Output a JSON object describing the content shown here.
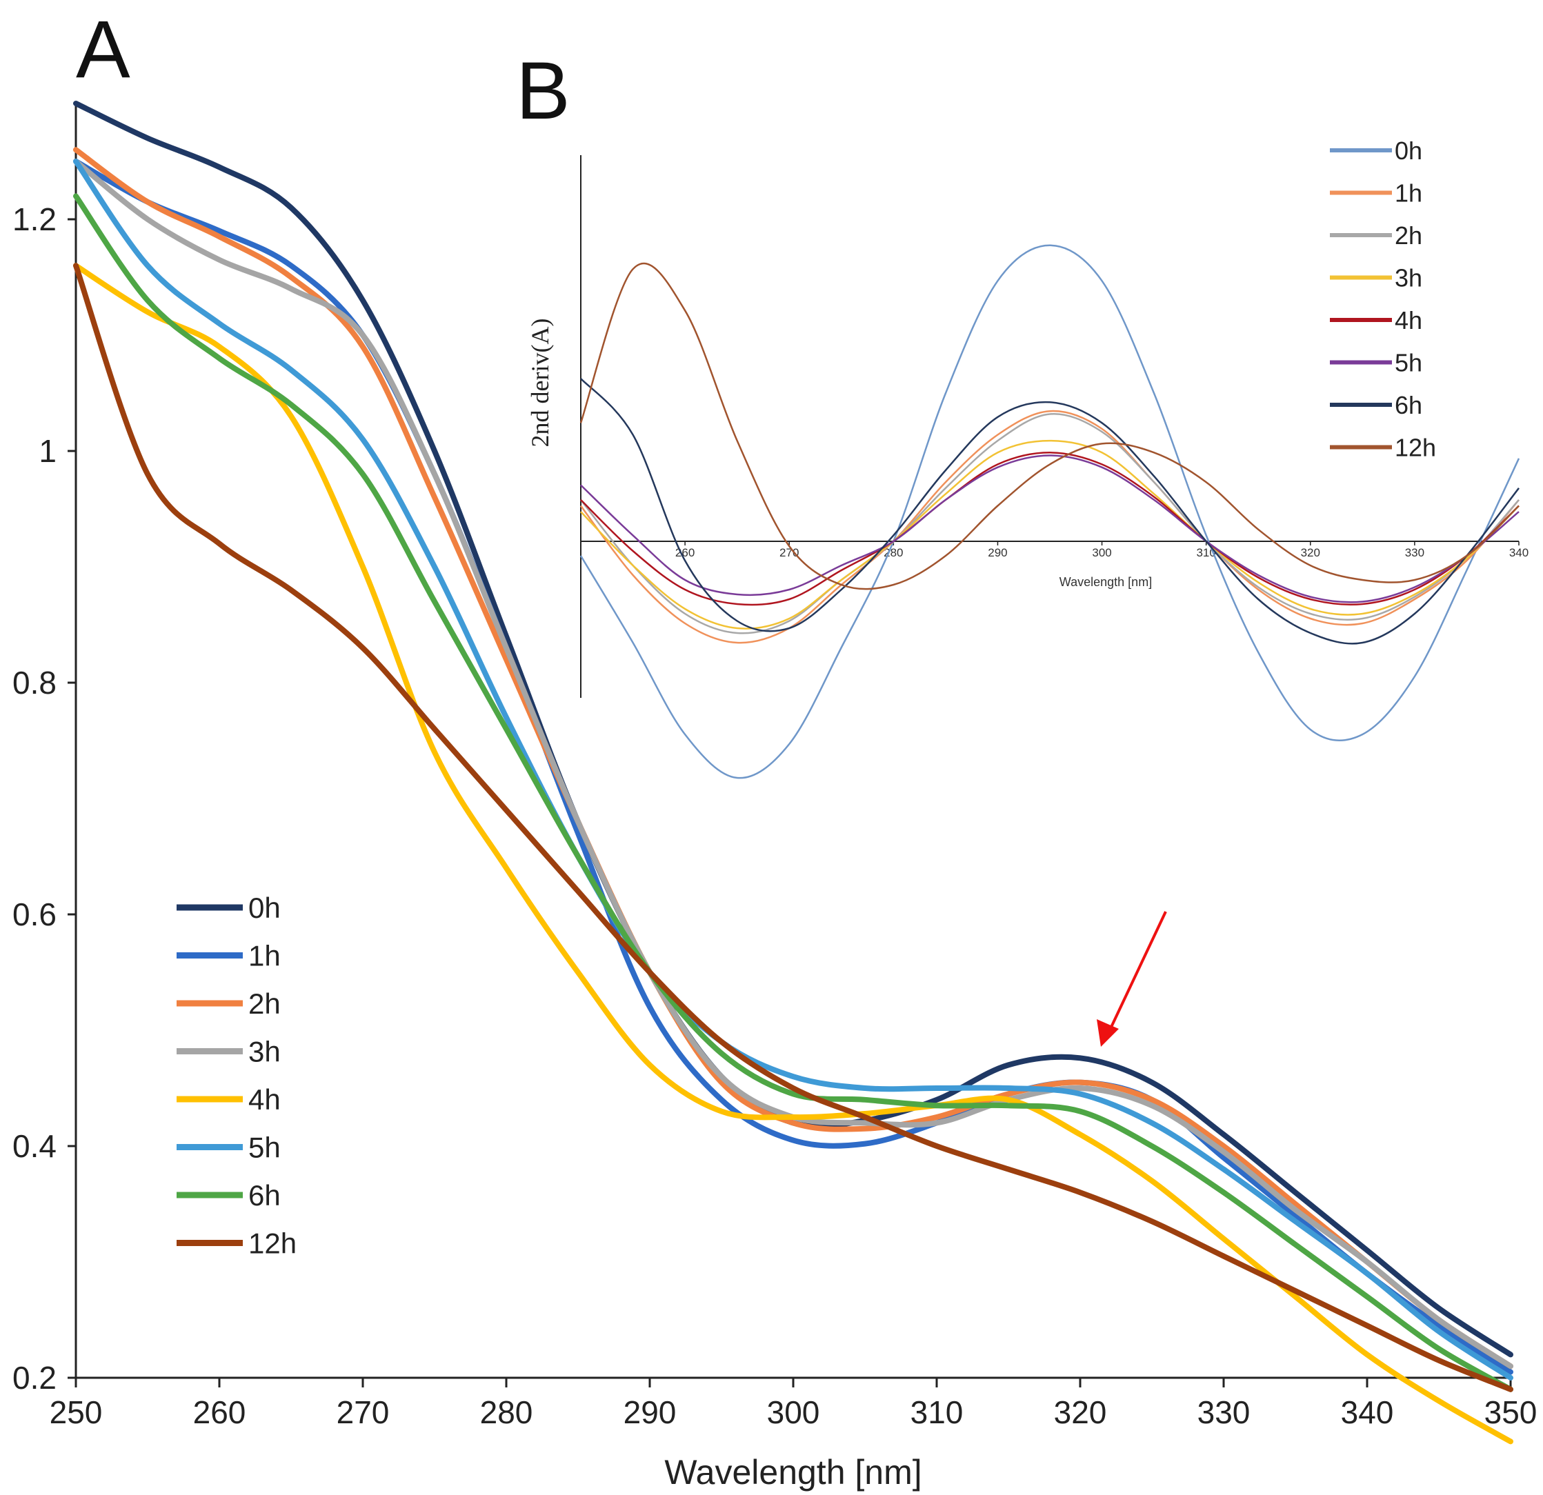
{
  "panels": {
    "a_label": "A",
    "b_label": "B"
  },
  "chart_data": [
    {
      "id": "A",
      "type": "line",
      "title": "",
      "xlabel": "Wavelength [nm]",
      "ylabel": "",
      "xlim": [
        250,
        350
      ],
      "ylim": [
        0.2,
        1.3
      ],
      "xticks": [
        "250",
        "260",
        "270",
        "280",
        "290",
        "300",
        "310",
        "320",
        "330",
        "340",
        "350"
      ],
      "yticks": [
        "0.2",
        "0.4",
        "0.6",
        "0.8",
        "1",
        "1.2"
      ],
      "x": [
        250,
        255,
        260,
        265,
        270,
        275,
        280,
        285,
        290,
        295,
        300,
        305,
        310,
        315,
        320,
        325,
        330,
        335,
        340,
        345,
        350
      ],
      "series": [
        {
          "name": "0h",
          "color": "#1f3864",
          "values": [
            1.3,
            1.27,
            1.245,
            1.21,
            1.13,
            1.0,
            0.84,
            0.68,
            0.55,
            0.46,
            0.42,
            0.422,
            0.44,
            0.47,
            0.476,
            0.455,
            0.41,
            0.36,
            0.31,
            0.26,
            0.22
          ]
        },
        {
          "name": "1h",
          "color": "#2e6bc7",
          "values": [
            1.25,
            1.215,
            1.19,
            1.16,
            1.1,
            0.98,
            0.83,
            0.67,
            0.52,
            0.44,
            0.405,
            0.402,
            0.42,
            0.445,
            0.455,
            0.44,
            0.39,
            0.34,
            0.29,
            0.245,
            0.205
          ]
        },
        {
          "name": "2h",
          "color": "#f08040",
          "values": [
            1.26,
            1.215,
            1.185,
            1.15,
            1.09,
            0.96,
            0.82,
            0.68,
            0.55,
            0.455,
            0.42,
            0.415,
            0.425,
            0.445,
            0.455,
            0.44,
            0.4,
            0.35,
            0.3,
            0.25,
            0.21
          ]
        },
        {
          "name": "3h",
          "color": "#a5a5a5",
          "values": [
            1.25,
            1.2,
            1.165,
            1.14,
            1.1,
            0.98,
            0.83,
            0.68,
            0.55,
            0.46,
            0.425,
            0.42,
            0.42,
            0.44,
            0.45,
            0.435,
            0.395,
            0.345,
            0.3,
            0.25,
            0.21
          ]
        },
        {
          "name": "4h",
          "color": "#ffc000",
          "values": [
            1.16,
            1.12,
            1.09,
            1.03,
            0.9,
            0.74,
            0.64,
            0.55,
            0.47,
            0.43,
            0.425,
            0.428,
            0.435,
            0.44,
            0.41,
            0.37,
            0.32,
            0.27,
            0.22,
            0.18,
            0.145
          ]
        },
        {
          "name": "5h",
          "color": "#3f9ad6",
          "values": [
            1.25,
            1.16,
            1.11,
            1.07,
            1.01,
            0.9,
            0.77,
            0.65,
            0.55,
            0.49,
            0.46,
            0.45,
            0.45,
            0.45,
            0.445,
            0.42,
            0.38,
            0.335,
            0.29,
            0.24,
            0.2
          ]
        },
        {
          "name": "6h",
          "color": "#4ea645",
          "values": [
            1.22,
            1.13,
            1.08,
            1.04,
            0.98,
            0.87,
            0.76,
            0.65,
            0.55,
            0.48,
            0.445,
            0.44,
            0.435,
            0.435,
            0.43,
            0.4,
            0.36,
            0.315,
            0.27,
            0.225,
            0.19
          ]
        },
        {
          "name": "12h",
          "color": "#9c3f0e",
          "values": [
            1.16,
            0.98,
            0.92,
            0.88,
            0.83,
            0.76,
            0.69,
            0.62,
            0.55,
            0.49,
            0.45,
            0.425,
            0.4,
            0.38,
            0.36,
            0.335,
            0.305,
            0.275,
            0.245,
            0.215,
            0.19
          ]
        }
      ]
    },
    {
      "id": "B",
      "type": "line",
      "title": "",
      "xlabel": "Wavelength [nm]",
      "ylabel": "2nd deriv(A)",
      "xlim": [
        250,
        340
      ],
      "ylim": [
        -1.0,
        1.2
      ],
      "xticks": [
        "260",
        "270",
        "280",
        "290",
        "300",
        "310",
        "320",
        "330",
        "340"
      ],
      "yticks": [],
      "x": [
        250,
        255,
        260,
        265,
        270,
        275,
        280,
        285,
        290,
        295,
        300,
        305,
        310,
        315,
        320,
        325,
        330,
        335,
        340
      ],
      "series": [
        {
          "name": "0h",
          "color": "#6f97c9",
          "values": [
            -0.06,
            -0.42,
            -0.8,
            -0.98,
            -0.84,
            -0.44,
            0.0,
            0.5,
            0.88,
            1.0,
            0.88,
            0.5,
            0.02,
            -0.46,
            -0.78,
            -0.8,
            -0.56,
            -0.12,
            0.28
          ]
        },
        {
          "name": "1h",
          "color": "#f0915a",
          "values": [
            0.12,
            -0.14,
            -0.34,
            -0.42,
            -0.36,
            -0.18,
            0.0,
            0.2,
            0.36,
            0.44,
            0.38,
            0.2,
            0.0,
            -0.2,
            -0.32,
            -0.34,
            -0.24,
            -0.08,
            0.14
          ]
        },
        {
          "name": "2h",
          "color": "#a8a8a8",
          "values": [
            0.14,
            -0.1,
            -0.3,
            -0.38,
            -0.33,
            -0.16,
            0.0,
            0.18,
            0.34,
            0.43,
            0.37,
            0.2,
            0.0,
            -0.19,
            -0.3,
            -0.32,
            -0.23,
            -0.07,
            0.14
          ]
        },
        {
          "name": "3h",
          "color": "#f2c234",
          "values": [
            0.1,
            -0.1,
            -0.28,
            -0.36,
            -0.32,
            -0.16,
            0.0,
            0.16,
            0.3,
            0.34,
            0.3,
            0.16,
            0.0,
            -0.17,
            -0.28,
            -0.3,
            -0.22,
            -0.07,
            0.12
          ]
        },
        {
          "name": "4h",
          "color": "#b0151f",
          "values": [
            0.14,
            -0.04,
            -0.2,
            -0.26,
            -0.24,
            -0.12,
            0.0,
            0.14,
            0.26,
            0.3,
            0.26,
            0.15,
            0.0,
            -0.15,
            -0.24,
            -0.26,
            -0.2,
            -0.06,
            0.12
          ]
        },
        {
          "name": "5h",
          "color": "#7a3b98",
          "values": [
            0.19,
            0.02,
            -0.16,
            -0.22,
            -0.2,
            -0.1,
            0.0,
            0.14,
            0.25,
            0.29,
            0.25,
            0.14,
            0.0,
            -0.14,
            -0.23,
            -0.25,
            -0.19,
            -0.06,
            0.1
          ]
        },
        {
          "name": "6h",
          "color": "#24385c",
          "values": [
            0.55,
            0.36,
            -0.08,
            -0.33,
            -0.36,
            -0.2,
            0.02,
            0.24,
            0.42,
            0.47,
            0.4,
            0.22,
            0.0,
            -0.24,
            -0.38,
            -0.42,
            -0.3,
            -0.06,
            0.18
          ]
        },
        {
          "name": "12h",
          "color": "#a1542e",
          "values": [
            0.4,
            0.92,
            0.78,
            0.34,
            -0.02,
            -0.18,
            -0.18,
            -0.06,
            0.12,
            0.26,
            0.33,
            0.3,
            0.2,
            0.04,
            -0.1,
            -0.16,
            -0.16,
            -0.06,
            0.12
          ]
        }
      ],
      "legend_position": "top-right"
    }
  ]
}
